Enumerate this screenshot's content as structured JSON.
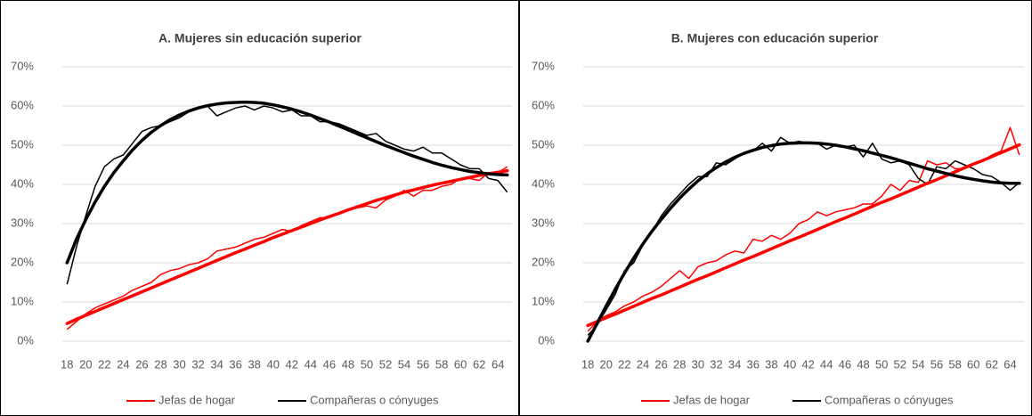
{
  "chart_data": [
    {
      "type": "line",
      "title": "A. Mujeres sin educación superior",
      "x": [
        18,
        19,
        20,
        21,
        22,
        23,
        24,
        25,
        26,
        27,
        28,
        29,
        30,
        31,
        32,
        33,
        34,
        35,
        36,
        37,
        38,
        39,
        40,
        41,
        42,
        43,
        44,
        45,
        46,
        47,
        48,
        49,
        50,
        51,
        52,
        53,
        54,
        55,
        56,
        57,
        58,
        59,
        60,
        61,
        62,
        63,
        64,
        65
      ],
      "xlim": [
        17.5,
        65.5
      ],
      "xticks": [
        18,
        20,
        22,
        24,
        26,
        28,
        30,
        32,
        34,
        36,
        38,
        40,
        42,
        44,
        46,
        48,
        50,
        52,
        54,
        56,
        58,
        60,
        62,
        64
      ],
      "ylim": [
        0,
        70
      ],
      "yticks": [
        {
          "value": 0,
          "label": "0%"
        },
        {
          "value": 10,
          "label": "10%"
        },
        {
          "value": 20,
          "label": "20%"
        },
        {
          "value": 30,
          "label": "30%"
        },
        {
          "value": 40,
          "label": "40%"
        },
        {
          "value": 50,
          "label": "50%"
        },
        {
          "value": 60,
          "label": "60%"
        },
        {
          "value": 70,
          "label": "70%"
        }
      ],
      "grid": true,
      "series": [
        {
          "name": "Jefas de hogar",
          "color": "#ff0000",
          "values": [
            3,
            5,
            7,
            8.5,
            9.5,
            10.5,
            11.5,
            13,
            14,
            15,
            17,
            18,
            18.5,
            19.5,
            20,
            21,
            23,
            23.5,
            24,
            25,
            26,
            26.5,
            27.5,
            28.5,
            28,
            29.5,
            30.5,
            31.5,
            31.5,
            32.5,
            33.5,
            34,
            34.5,
            34,
            36,
            37,
            38.5,
            37,
            38.5,
            38.5,
            39.5,
            40,
            41.5,
            41.5,
            41,
            43,
            43,
            44.5
          ],
          "trend": [
            4.5,
            5.6,
            6.6,
            7.6,
            8.6,
            9.6,
            10.6,
            11.6,
            12.6,
            13.6,
            14.6,
            15.6,
            16.6,
            17.6,
            18.6,
            19.6,
            20.6,
            21.6,
            22.6,
            23.5,
            24.5,
            25.4,
            26.4,
            27.3,
            28.2,
            29.1,
            30,
            30.9,
            31.8,
            32.6,
            33.5,
            34.3,
            35.1,
            35.9,
            36.6,
            37.3,
            38,
            38.6,
            39.2,
            39.8,
            40.3,
            40.8,
            41.3,
            41.8,
            42.3,
            42.7,
            43.1,
            43.5
          ]
        },
        {
          "name": "Compañeras o cónyuges",
          "color": "#000000",
          "values": [
            14.5,
            24,
            32,
            39.5,
            44.5,
            46.5,
            47.5,
            50.5,
            53.5,
            54.5,
            55,
            56,
            57,
            58.5,
            59.5,
            60,
            57.5,
            58.5,
            59.5,
            60,
            59,
            60,
            59.5,
            58.5,
            59,
            57.5,
            57.5,
            56,
            56,
            55.5,
            54.5,
            53.5,
            52.5,
            53,
            51,
            50,
            49,
            48.5,
            49.5,
            48,
            48,
            46.5,
            45,
            44,
            44,
            41.5,
            41,
            38
          ],
          "trend": [
            20,
            26,
            31,
            35.5,
            39.5,
            43,
            46,
            48.8,
            51.2,
            53.3,
            55,
            56.5,
            57.7,
            58.7,
            59.5,
            60.1,
            60.5,
            60.8,
            60.9,
            61,
            60.9,
            60.7,
            60.3,
            59.8,
            59.2,
            58.5,
            57.7,
            56.8,
            55.9,
            54.9,
            53.9,
            52.9,
            51.9,
            50.9,
            49.9,
            49,
            48.1,
            47.2,
            46.4,
            45.6,
            44.9,
            44.3,
            43.8,
            43.3,
            43,
            42.7,
            42.5,
            42.4
          ]
        }
      ]
    },
    {
      "type": "line",
      "title": "B. Mujeres con educación superior",
      "x": [
        18,
        19,
        20,
        21,
        22,
        23,
        24,
        25,
        26,
        27,
        28,
        29,
        30,
        31,
        32,
        33,
        34,
        35,
        36,
        37,
        38,
        39,
        40,
        41,
        42,
        43,
        44,
        45,
        46,
        47,
        48,
        49,
        50,
        51,
        52,
        53,
        54,
        55,
        56,
        57,
        58,
        59,
        60,
        61,
        62,
        63,
        64,
        65
      ],
      "xlim": [
        17.5,
        65.5
      ],
      "xticks": [
        18,
        20,
        22,
        24,
        26,
        28,
        30,
        32,
        34,
        36,
        38,
        40,
        42,
        44,
        46,
        48,
        50,
        52,
        54,
        56,
        58,
        60,
        62,
        64
      ],
      "ylim": [
        0,
        70
      ],
      "yticks": [
        {
          "value": 0,
          "label": "0%"
        },
        {
          "value": 10,
          "label": "10%"
        },
        {
          "value": 20,
          "label": "20%"
        },
        {
          "value": 30,
          "label": "30%"
        },
        {
          "value": 40,
          "label": "40%"
        },
        {
          "value": 50,
          "label": "50%"
        },
        {
          "value": 60,
          "label": "60%"
        },
        {
          "value": 70,
          "label": "70%"
        }
      ],
      "grid": true,
      "series": [
        {
          "name": "Jefas de hogar",
          "color": "#ff0000",
          "values": [
            2.5,
            5,
            6.5,
            7.5,
            9,
            10,
            11.5,
            12.5,
            14,
            16,
            18,
            16,
            19,
            20,
            20.5,
            22,
            23,
            22.5,
            26,
            25.5,
            27,
            26,
            27.5,
            30,
            31,
            33,
            32,
            33,
            33.5,
            34,
            35,
            35,
            37,
            40,
            38.5,
            41,
            40.5,
            46,
            45,
            45.5,
            44,
            44,
            45,
            46,
            47.5,
            48.5,
            54.5,
            47.5
          ],
          "trend": [
            4,
            5,
            6,
            6.9,
            7.9,
            8.9,
            9.9,
            10.9,
            11.8,
            12.8,
            13.8,
            14.8,
            15.8,
            16.7,
            17.7,
            18.7,
            19.7,
            20.7,
            21.6,
            22.6,
            23.6,
            24.6,
            25.6,
            26.5,
            27.5,
            28.5,
            29.5,
            30.5,
            31.4,
            32.4,
            33.4,
            34.4,
            35.4,
            36.3,
            37.3,
            38.3,
            39.3,
            40.3,
            41.2,
            42.2,
            43.2,
            44.2,
            45.2,
            46.1,
            47.1,
            48.1,
            49.1,
            50.1
          ]
        },
        {
          "name": "Compañeras o cónyuges",
          "color": "#000000",
          "values": [
            1.5,
            4,
            8,
            12,
            18,
            20,
            24.5,
            28,
            32,
            35,
            37.5,
            40,
            42,
            42,
            45.5,
            45,
            46.5,
            48,
            48.5,
            50.5,
            48.5,
            52,
            50.5,
            51,
            50.5,
            50.5,
            49,
            50,
            49.5,
            50,
            47,
            50.5,
            46.5,
            45.5,
            46,
            45,
            41.5,
            40,
            44.5,
            44,
            46,
            45,
            44,
            42.5,
            42,
            40.5,
            38.5,
            40.5
          ],
          "trend": [
            0,
            4.5,
            9,
            13.3,
            17.4,
            21.2,
            24.8,
            28.1,
            31.1,
            33.9,
            36.5,
            38.8,
            40.9,
            42.7,
            44.3,
            45.7,
            46.9,
            47.9,
            48.7,
            49.4,
            49.9,
            50.3,
            50.5,
            50.6,
            50.6,
            50.5,
            50.3,
            50,
            49.6,
            49.1,
            48.6,
            48,
            47.4,
            46.8,
            46.1,
            45.4,
            44.7,
            44,
            43.4,
            42.8,
            42.2,
            41.7,
            41.3,
            40.9,
            40.6,
            40.4,
            40.3,
            40.3
          ]
        }
      ]
    }
  ]
}
